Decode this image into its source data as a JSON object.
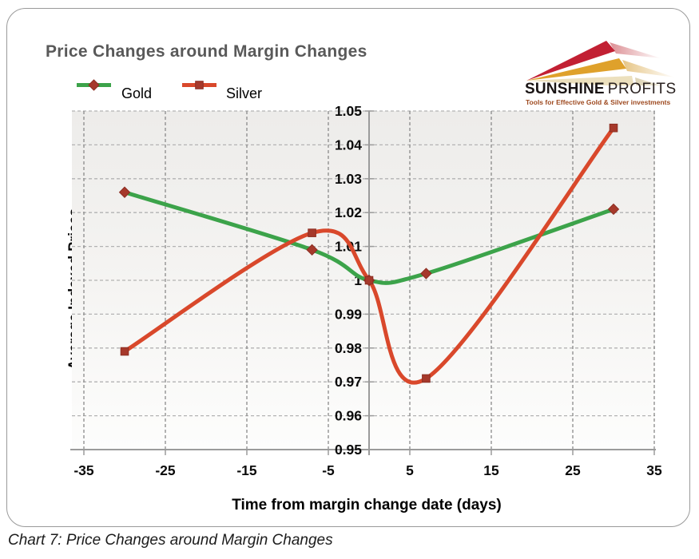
{
  "page": {
    "caption": "Chart 7: Price Changes around Margin Changes"
  },
  "logo": {
    "brand_bold": "SUNSHINE",
    "brand_light": "PROFITS",
    "tagline": "Tools for Effective Gold & Silver investments",
    "colors": {
      "red": "#c22033",
      "amber": "#dfa12b",
      "cream": "#ece0bd",
      "tagline_text": "#9e4a20"
    }
  },
  "chart_data": {
    "type": "line",
    "title": "Price Changes around Margin Changes",
    "title_color": "#595959",
    "xlabel": "Time from margin change date (days)",
    "ylabel": "Average Indexed Prices",
    "x": [
      -30,
      -7,
      0,
      7,
      30
    ],
    "series": [
      {
        "name": "Gold",
        "color": "#3ca34a",
        "marker": "diamond",
        "marker_color": "#a6392b",
        "values": [
          1.026,
          1.009,
          1.0,
          1.002,
          1.021
        ]
      },
      {
        "name": "Silver",
        "color": "#d9482b",
        "marker": "square",
        "marker_color": "#a6392b",
        "values": [
          0.979,
          1.014,
          1.0,
          0.971,
          1.045
        ]
      }
    ],
    "xlim": [
      -35,
      35
    ],
    "ylim": [
      0.95,
      1.05
    ],
    "xticks": {
      "values": [
        -35,
        -25,
        -15,
        -5,
        5,
        15,
        25,
        35
      ],
      "labels": [
        "-35",
        "-25",
        "-15",
        "-5",
        "5",
        "15",
        "25",
        "35"
      ]
    },
    "yticks": {
      "values": [
        1.05,
        1.04,
        1.03,
        1.02,
        1.01,
        1.0,
        0.99,
        0.98,
        0.97,
        0.96,
        0.95
      ],
      "labels": [
        "1.05",
        "1.04",
        "1.03",
        "1.02",
        "1.01",
        "1",
        "0.99",
        "0.98",
        "0.97",
        "0.96",
        "0.95"
      ]
    },
    "grid": true,
    "smooth": true,
    "legend_position": "top-left"
  }
}
